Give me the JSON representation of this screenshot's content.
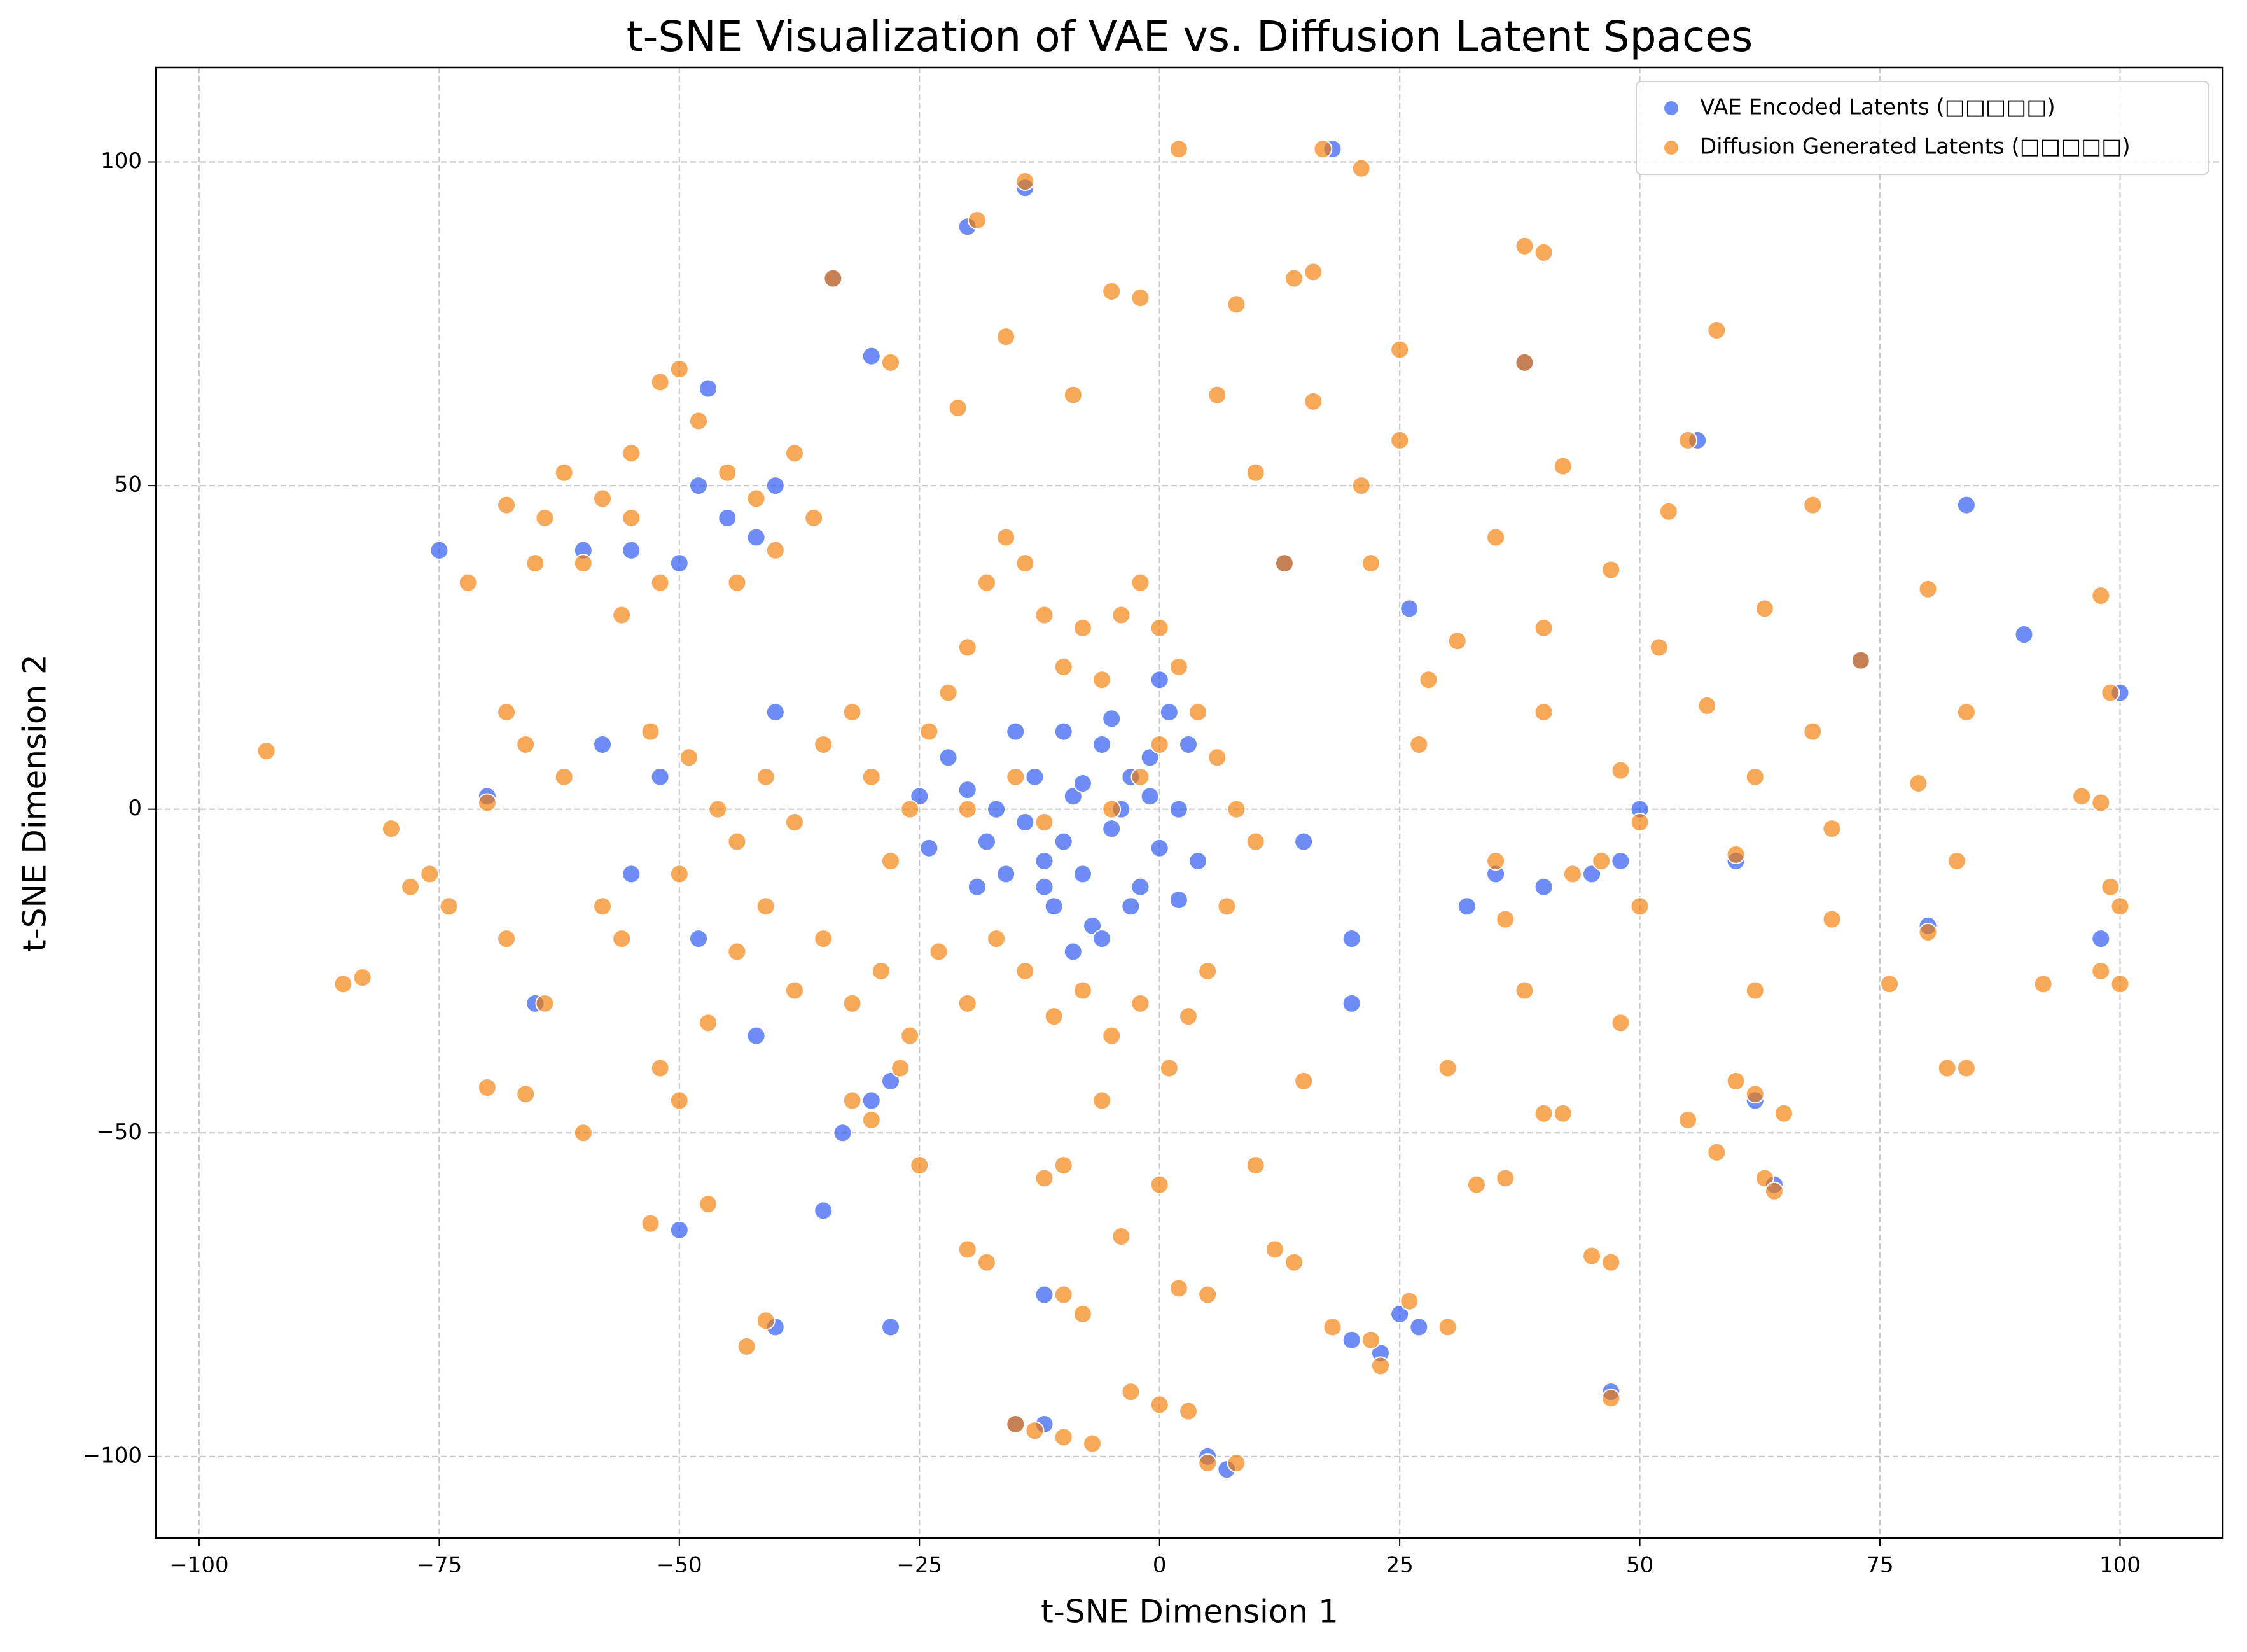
{
  "chart_data": {
    "type": "scatter",
    "title": "t-SNE Visualization of VAE vs. Diffusion Latent Spaces",
    "x_label": "t-SNE Dimension 1",
    "y_label": "t-SNE Dimension 2",
    "xlim": [
      -104.5,
      110.7
    ],
    "ylim": [
      -112.6,
      114.6
    ],
    "xticks": [
      {
        "value": -100,
        "label": "−100"
      },
      {
        "value": -75,
        "label": "−75"
      },
      {
        "value": -50,
        "label": "−50"
      },
      {
        "value": -25,
        "label": "−25"
      },
      0,
      25,
      50,
      75,
      100
    ],
    "yticks": [
      {
        "value": -100,
        "label": "−100"
      },
      {
        "value": -50,
        "label": "−50"
      },
      0,
      50,
      100
    ],
    "grid": true,
    "legend": "upper right",
    "series": [
      {
        "name": "VAE Encoded Latents (□□□□□)",
        "color": "#1f4ef0",
        "x": [
          -12,
          -10,
          -8,
          -5,
          -3,
          -1,
          2,
          -14,
          -16,
          -6,
          -9,
          -2,
          0,
          3,
          -11,
          -7,
          -4,
          1,
          -13,
          -18,
          -20,
          -22,
          -24,
          -6,
          -3,
          4,
          2,
          -15,
          -17,
          -8,
          -10,
          -12,
          -1,
          -5,
          0,
          -9,
          -19,
          -25,
          -45,
          -48,
          -42,
          -50,
          -55,
          -40,
          -60,
          -47,
          -75,
          -58,
          -52,
          -55,
          -65,
          -48,
          -42,
          -30,
          -33,
          -28,
          -35,
          -50,
          -40,
          -70,
          25,
          23,
          27,
          20,
          -15,
          -12,
          5,
          7,
          15,
          20,
          20,
          35,
          40,
          45,
          48,
          62,
          64,
          60,
          80,
          84,
          90,
          100,
          98,
          -20,
          18,
          -14,
          38,
          56,
          73,
          26,
          13,
          -30,
          -34,
          -12,
          47,
          -40,
          -28,
          50,
          32
        ],
        "values": [
          -8,
          -5,
          -10,
          -3,
          5,
          8,
          0,
          -2,
          -10,
          10,
          2,
          -12,
          -6,
          10,
          -15,
          -18,
          0,
          15,
          5,
          -5,
          3,
          8,
          -6,
          -20,
          -15,
          -8,
          -14,
          12,
          0,
          4,
          12,
          -12,
          2,
          14,
          20,
          -22,
          -12,
          2,
          45,
          50,
          42,
          38,
          40,
          50,
          40,
          65,
          40,
          10,
          5,
          -10,
          -30,
          -20,
          -35,
          -45,
          -50,
          -42,
          -62,
          -65,
          15,
          2,
          -78,
          -84,
          -80,
          -82,
          -95,
          -95,
          -100,
          -102,
          -5,
          -20,
          -30,
          -10,
          -12,
          -10,
          -8,
          -45,
          -58,
          -8,
          -18,
          47,
          27,
          18,
          -20,
          90,
          102,
          96,
          69,
          57,
          23,
          31,
          38,
          70,
          82,
          -75,
          -90,
          -80,
          -80,
          0,
          -15
        ]
      },
      {
        "name": "Diffusion Generated Latents (□□□□□)",
        "color": "#f57a00",
        "x": [
          -93,
          -85,
          -83,
          -78,
          -76,
          -74,
          -80,
          -70,
          -66,
          -68,
          -64,
          -60,
          -58,
          -56,
          -62,
          -66,
          -68,
          -70,
          -72,
          -68,
          -65,
          -62,
          -58,
          -55,
          -52,
          -50,
          -48,
          -45,
          -42,
          -38,
          -36,
          -40,
          -44,
          -52,
          -55,
          -60,
          -64,
          -56,
          -53,
          -49,
          -46,
          -44,
          -41,
          -38,
          -35,
          -32,
          -30,
          -28,
          -26,
          -24,
          -22,
          -20,
          -18,
          -16,
          -14,
          -12,
          -10,
          -8,
          -6,
          -4,
          -2,
          0,
          2,
          4,
          6,
          8,
          10,
          7,
          5,
          3,
          1,
          -2,
          -5,
          -8,
          -11,
          -14,
          -17,
          -20,
          -23,
          -26,
          -29,
          -32,
          -35,
          -38,
          -41,
          -44,
          -47,
          -50,
          -52,
          -50,
          -47,
          -53,
          -43,
          -41,
          -32,
          -30,
          -27,
          -25,
          -20,
          -18,
          -15,
          -13,
          -10,
          -7,
          -3,
          0,
          3,
          5,
          8,
          2,
          5,
          -10,
          -8,
          -12,
          -10,
          -6,
          -4,
          0,
          10,
          12,
          14,
          15,
          18,
          22,
          23,
          26,
          30,
          30,
          33,
          36,
          40,
          42,
          45,
          47,
          47,
          48,
          50,
          55,
          58,
          60,
          62,
          63,
          64,
          65,
          62,
          70,
          76,
          82,
          84,
          80,
          92,
          98,
          100,
          99,
          100,
          96,
          98,
          98,
          99,
          84,
          80,
          83,
          79,
          73,
          70,
          68,
          68,
          63,
          62,
          60,
          57,
          55,
          58,
          52,
          53,
          50,
          47,
          48,
          46,
          43,
          40,
          40,
          42,
          40,
          38,
          38,
          35,
          35,
          36,
          38,
          31,
          28,
          27,
          25,
          25,
          22,
          21,
          21,
          17,
          16,
          14,
          13,
          16,
          10,
          8,
          6,
          2,
          -2,
          -5,
          -9,
          -14,
          -16,
          -19,
          -21,
          -28,
          -34,
          -20,
          -15,
          -12,
          -5,
          -2,
          0
        ],
        "values": [
          9,
          -27,
          -26,
          -12,
          -10,
          -15,
          -3,
          -43,
          -44,
          -20,
          -30,
          -50,
          -15,
          -20,
          5,
          10,
          15,
          1,
          35,
          47,
          38,
          52,
          48,
          55,
          66,
          68,
          60,
          52,
          48,
          55,
          45,
          40,
          35,
          35,
          45,
          38,
          45,
          30,
          12,
          8,
          0,
          -5,
          5,
          -2,
          10,
          15,
          5,
          -8,
          0,
          12,
          18,
          25,
          35,
          42,
          38,
          30,
          22,
          28,
          20,
          30,
          35,
          28,
          22,
          15,
          8,
          0,
          -5,
          -15,
          -25,
          -32,
          -40,
          -30,
          -35,
          -28,
          -32,
          -25,
          -20,
          -30,
          -22,
          -35,
          -25,
          -30,
          -20,
          -28,
          -15,
          -22,
          -33,
          -10,
          -40,
          -45,
          -61,
          -64,
          -83,
          -79,
          -45,
          -48,
          -40,
          -55,
          -68,
          -70,
          -95,
          -96,
          -97,
          -98,
          -90,
          -92,
          -93,
          -101,
          -101,
          -74,
          -75,
          -75,
          -78,
          -57,
          -55,
          -45,
          -66,
          -58,
          -55,
          -68,
          -70,
          -42,
          -80,
          -82,
          -86,
          -76,
          -80,
          -40,
          -58,
          -57,
          -47,
          -47,
          -69,
          -70,
          -91,
          -33,
          -15,
          -48,
          -53,
          -42,
          -44,
          -57,
          -59,
          -47,
          -28,
          -17,
          -27,
          -40,
          -40,
          -19,
          -27,
          -25,
          -27,
          -12,
          -15,
          2,
          1,
          33,
          18,
          15,
          34,
          -8,
          4,
          23,
          -3,
          12,
          47,
          31,
          5,
          -7,
          16,
          57,
          74,
          25,
          46,
          -2,
          37,
          6,
          -8,
          -10,
          28,
          15,
          53,
          86,
          87,
          69,
          42,
          -8,
          -17,
          -28,
          26,
          20,
          10,
          71,
          57,
          38,
          50,
          99,
          102,
          83,
          82,
          38,
          63,
          52,
          78,
          64,
          102,
          79,
          80,
          64,
          97,
          73,
          91,
          62,
          69,
          82,
          0,
          5,
          -2,
          0,
          5,
          10
        ]
      }
    ]
  }
}
